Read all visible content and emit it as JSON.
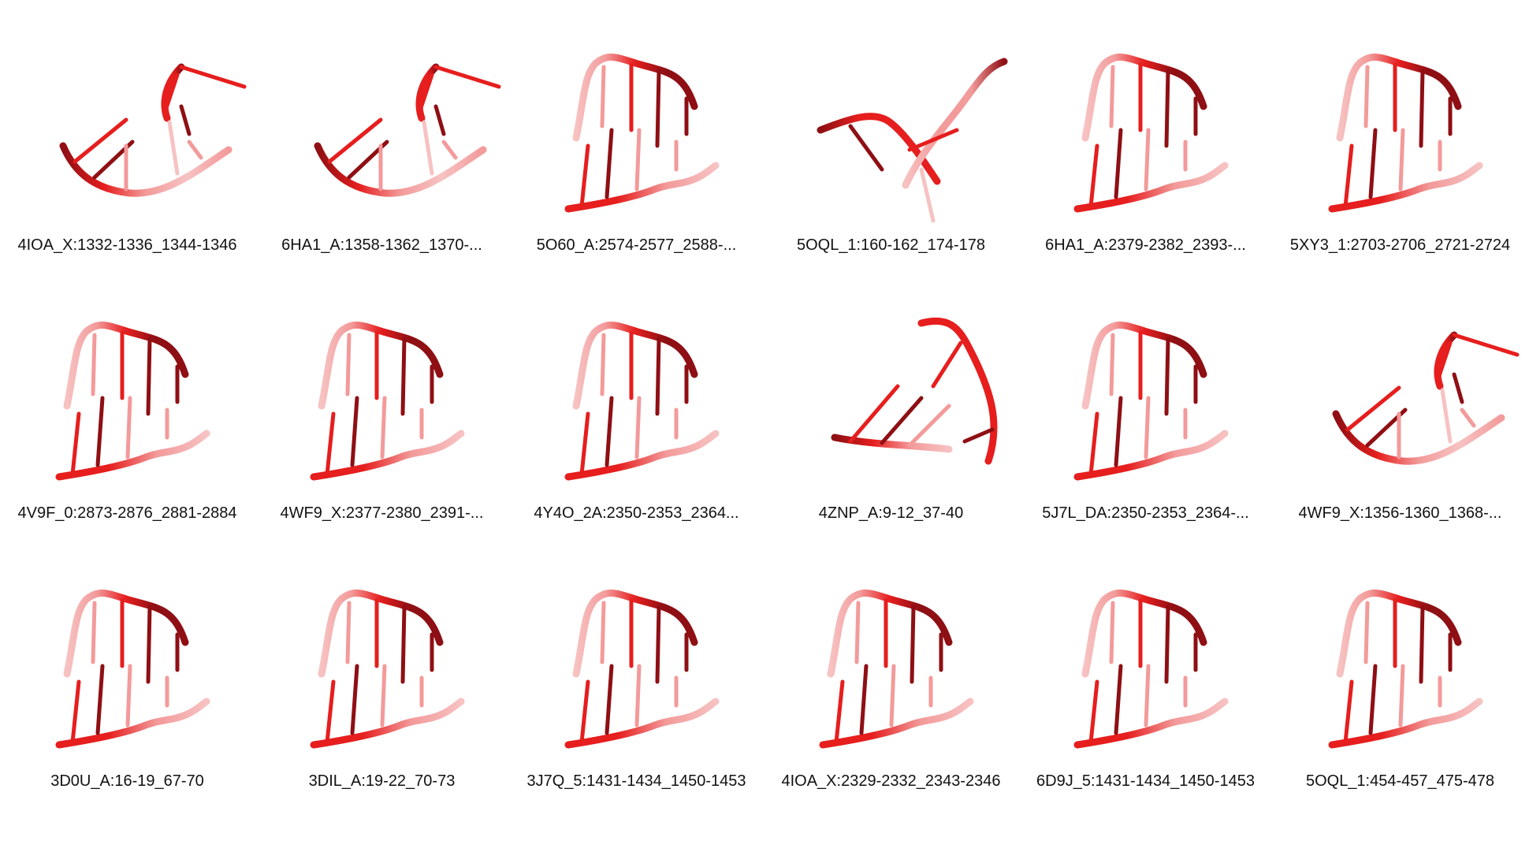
{
  "colors": {
    "dark": "#8e0f14",
    "mid": "#e61e1e",
    "light": "#f39a9a",
    "pale": "#f7c2c2"
  },
  "panels": [
    {
      "label": "4IOA_X:1332-1336_1344-1346",
      "shape": "fan"
    },
    {
      "label": "6HA1_A:1358-1362_1370-...",
      "shape": "fan"
    },
    {
      "label": "5O60_A:2574-2577_2588-...",
      "shape": "helix"
    },
    {
      "label": "5OQL_1:160-162_174-178",
      "shape": "kink"
    },
    {
      "label": "6HA1_A:2379-2382_2393-...",
      "shape": "helix"
    },
    {
      "label": "5XY3_1:2703-2706_2721-2724",
      "shape": "helix"
    },
    {
      "label": "4V9F_0:2873-2876_2881-2884",
      "shape": "helix"
    },
    {
      "label": "4WF9_X:2377-2380_2391-...",
      "shape": "helix"
    },
    {
      "label": "4Y4O_2A:2350-2353_2364...",
      "shape": "helix"
    },
    {
      "label": "4ZNP_A:9-12_37-40",
      "shape": "hook"
    },
    {
      "label": "5J7L_DA:2350-2353_2364-...",
      "shape": "helix"
    },
    {
      "label": "4WF9_X:1356-1360_1368-...",
      "shape": "fan"
    },
    {
      "label": "3D0U_A:16-19_67-70",
      "shape": "helix"
    },
    {
      "label": "3DIL_A:19-22_70-73",
      "shape": "helix"
    },
    {
      "label": "3J7Q_5:1431-1434_1450-1453",
      "shape": "helix"
    },
    {
      "label": "4IOA_X:2329-2332_2343-2346",
      "shape": "helix"
    },
    {
      "label": "6D9J_5:1431-1434_1450-1453",
      "shape": "helix"
    },
    {
      "label": "5OQL_1:454-457_475-478",
      "shape": "helix"
    }
  ]
}
